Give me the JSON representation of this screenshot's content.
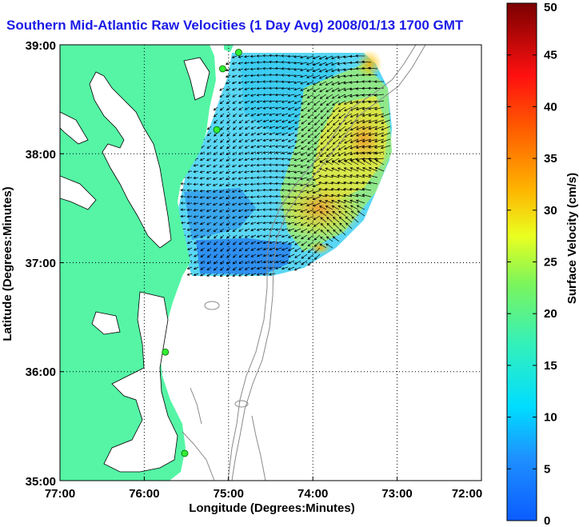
{
  "title": "Southern Mid-Atlantic Raw Velocities (1 Day Avg) 2008/01/13 1700 GMT",
  "x_axis": {
    "label": "Longitude (Degrees:Minutes)",
    "ticks": [
      "77:00",
      "76:00",
      "75:00",
      "74:00",
      "73:00",
      "72:00"
    ]
  },
  "y_axis": {
    "label": "Latitude (Degrees:Minutes)",
    "ticks": [
      "39:00",
      "38:00",
      "37:00",
      "36:00",
      "35:00"
    ]
  },
  "colorbar": {
    "label": "Surface Velocity (cm/s)",
    "min": 0,
    "max": 50,
    "ticks": [
      "0",
      "5",
      "10",
      "15",
      "20",
      "25",
      "30",
      "35",
      "40",
      "45",
      "50"
    ]
  },
  "colors": {
    "land": "#55f5a5",
    "title": "#1a1ae6",
    "station": "#33ee33",
    "bathymetry": "#8a8a8a"
  },
  "stations": [
    {
      "lat": 38.93,
      "lon": -74.88
    },
    {
      "lat": 38.78,
      "lon": -75.07
    },
    {
      "lat": 38.22,
      "lon": -75.14
    },
    {
      "lat": 36.18,
      "lon": -75.75
    },
    {
      "lat": 35.25,
      "lon": -75.52
    }
  ]
}
